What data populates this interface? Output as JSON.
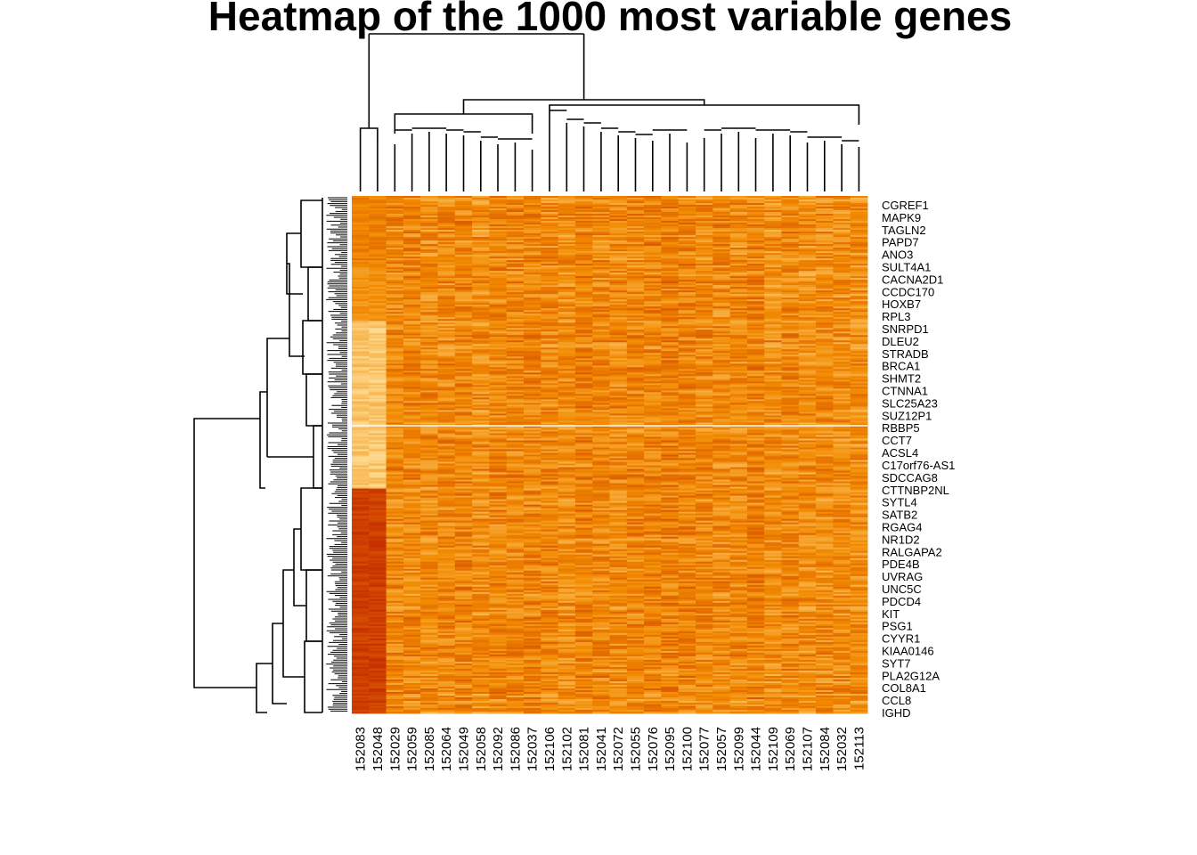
{
  "chart_data": {
    "type": "heatmap",
    "title": "Heatmap of the 1000 most variable genes",
    "n_genes": 1000,
    "columns": [
      "152083",
      "152048",
      "152029",
      "152059",
      "152085",
      "152064",
      "152049",
      "152058",
      "152092",
      "152086",
      "152037",
      "152106",
      "152102",
      "152081",
      "152041",
      "152072",
      "152055",
      "152076",
      "152095",
      "152100",
      "152077",
      "152057",
      "152099",
      "152044",
      "152109",
      "152069",
      "152107",
      "152084",
      "152032",
      "152113"
    ],
    "row_labels": [
      "CGREF1",
      "MAPK9",
      "TAGLN2",
      "PAPD7",
      "ANO3",
      "SULT4A1",
      "CACNA2D1",
      "CCDC170",
      "HOXB7",
      "RPL3",
      "SNRPD1",
      "DLEU2",
      "STRADB",
      "BRCA1",
      "SHMT2",
      "CTNNA1",
      "SLC25A23",
      "SUZ12P1",
      "RBBP5",
      "CCT7",
      "ACSL4",
      "C17orf76-AS1",
      "SDCCAG8",
      "CTTNBP2NL",
      "SYTL4",
      "SATB2",
      "RGAG4",
      "NR1D2",
      "RALGAPA2",
      "PDE4B",
      "UVRAG",
      "UNC5C",
      "PDCD4",
      "KIT",
      "PSG1",
      "CYYR1",
      "KIAA0146",
      "SYT7",
      "PLA2G12A",
      "COL8A1",
      "CCL8",
      "IGHD"
    ],
    "color_scale": {
      "low": "#c22800",
      "mid": "#f28a00",
      "high": "#ffe6a8"
    },
    "row_dendrogram": true,
    "column_dendrogram": true,
    "legend": "none"
  }
}
